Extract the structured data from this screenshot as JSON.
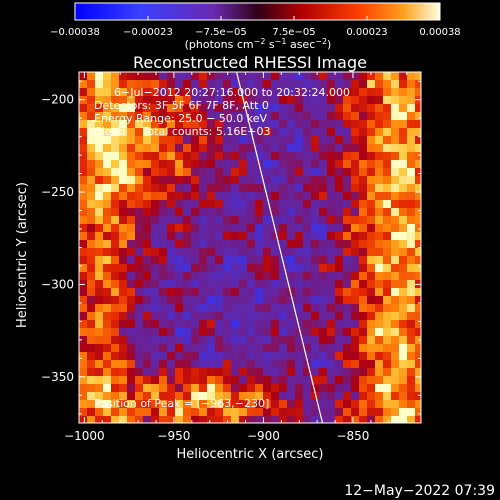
{
  "chart_data": {
    "type": "heatmap",
    "title": "Reconstructed RHESSI Image",
    "xlabel": "Heliocentric X (arcsec)",
    "ylabel": "Heliocentric Y (arcsec)",
    "xlim": [
      -1003,
      -812
    ],
    "ylim": [
      -375,
      -185
    ],
    "x_ticks": [
      -1000,
      -950,
      -900,
      -850
    ],
    "y_ticks": [
      -200,
      -250,
      -300,
      -350
    ],
    "x_tick_labels": [
      "−1000",
      "−950",
      "−900",
      "−850"
    ],
    "y_tick_labels": [
      "−200",
      "−250",
      "−300",
      "−350"
    ],
    "grid": false,
    "colorbar": {
      "range": [
        -0.00038,
        0.00038
      ],
      "tick_labels": [
        "−0.00038",
        "−0.00023",
        "−7.5e−05",
        "7.5e−05",
        "0.00023",
        "0.00038"
      ],
      "unit_text": "(photons cm",
      "unit_exp1": "−2",
      "unit_mid": " s",
      "unit_exp2": "−1",
      "unit_mid2": " asec",
      "unit_exp3": "−2",
      "unit_end": ")"
    },
    "limb_line": {
      "description_values": [
        [
          -915,
          -185
        ],
        [
          -867,
          -375
        ]
      ]
    },
    "info_lines": [
      "6−Jul−2012 20:27:16.000 to 20:32:24.000",
      "Detectors: 3F 5F 6F 7F 8F, Att 0",
      "Energy Range: 25.0 − 50.0 keV",
      "Clean     Total counts: 5.16E+03"
    ],
    "peak_label": "Position of Peak = [−963,−230]",
    "peak": [
      -963,
      -230
    ],
    "colors": {
      "low": "#0000ff",
      "mid_low": "#4a2a9a",
      "mid": "#c00000",
      "high": "#ff8000",
      "top": "#ffffc0"
    }
  },
  "footer": {
    "date_stamp": "12−May−2022 07:39"
  }
}
